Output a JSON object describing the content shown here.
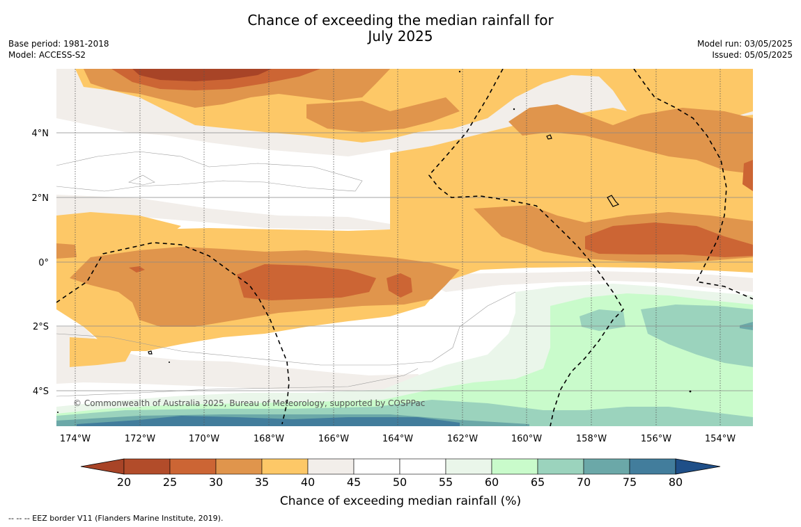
{
  "title": {
    "line1": "Chance of exceeding the median rainfall for",
    "line2": "July 2025"
  },
  "meta": {
    "base_period": "Base period: 1981-2018",
    "model": "Model: ACCESS-S2",
    "model_run": "Model run: 03/05/2025",
    "issued": "Issued: 05/05/2025"
  },
  "map": {
    "copyright": "© Commonwealth of Australia 2025, Bureau of Meteorology, supported by COSPPac",
    "lat_labels": [
      "4°N",
      "2°N",
      "0°",
      "2°S",
      "4°S"
    ],
    "lon_labels": [
      "174°W",
      "172°W",
      "170°W",
      "168°W",
      "166°W",
      "164°W",
      "162°W",
      "160°W",
      "158°W",
      "156°W",
      "154°W"
    ]
  },
  "legend": {
    "ticks": [
      "20",
      "25",
      "30",
      "35",
      "40",
      "45",
      "50",
      "55",
      "60",
      "65",
      "70",
      "75",
      "80"
    ],
    "label": "Chance of exceeding median rainfall (%)",
    "colors": [
      "#a84427",
      "#b24c2a",
      "#cc6534",
      "#e0954c",
      "#fdc867",
      "#f2eeea",
      "#ffffff",
      "#ffffff",
      "#eaf6ea",
      "#c9fbcb",
      "#9bd3bd",
      "#6ba8a8",
      "#427d9c",
      "#1f4f88"
    ]
  },
  "footer": "--  --  -- EEZ border V11 (Flanders Marine Institute, 2019)."
}
